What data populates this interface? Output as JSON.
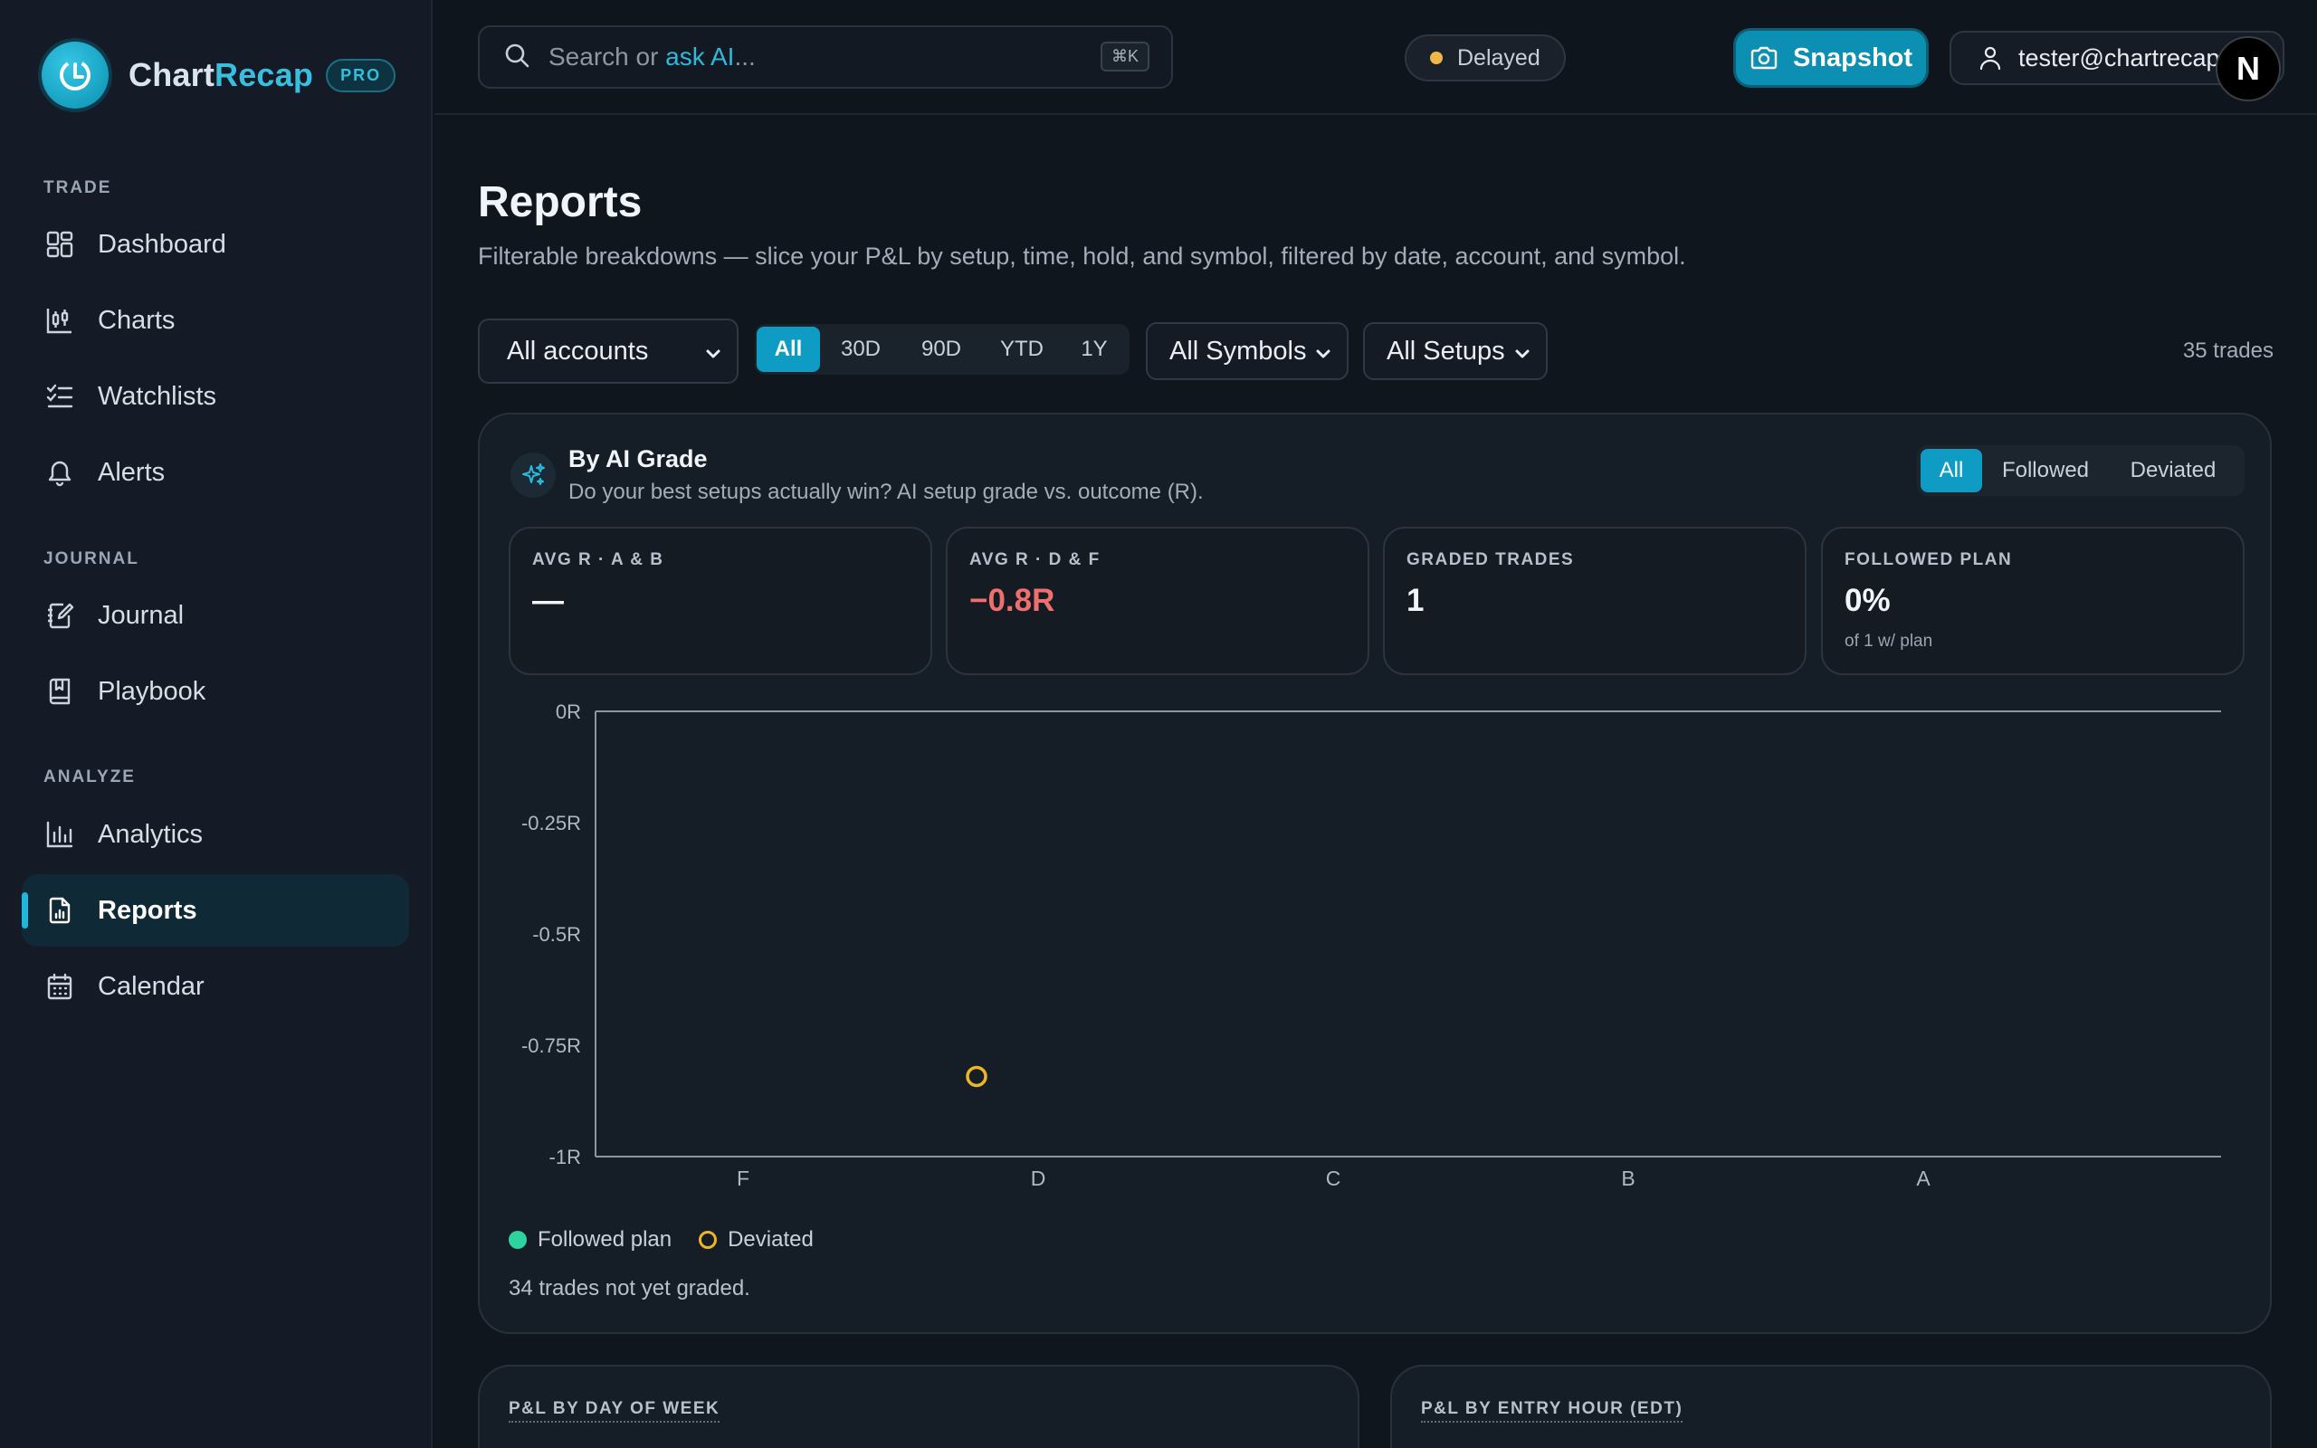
{
  "brand": {
    "name_part1": "Chart",
    "name_part2": "Recap",
    "badge": "PRO"
  },
  "sidebar": {
    "sections": [
      {
        "label": "TRADE",
        "items": [
          {
            "label": "Dashboard",
            "icon": "dashboard-icon"
          },
          {
            "label": "Charts",
            "icon": "candlestick-icon"
          },
          {
            "label": "Watchlists",
            "icon": "list-check-icon"
          },
          {
            "label": "Alerts",
            "icon": "bell-icon"
          }
        ]
      },
      {
        "label": "JOURNAL",
        "items": [
          {
            "label": "Journal",
            "icon": "notebook-pen-icon"
          },
          {
            "label": "Playbook",
            "icon": "book-bookmark-icon"
          }
        ]
      },
      {
        "label": "ANALYZE",
        "items": [
          {
            "label": "Analytics",
            "icon": "bar-chart-icon"
          },
          {
            "label": "Reports",
            "icon": "file-chart-icon",
            "active": true
          },
          {
            "label": "Calendar",
            "icon": "calendar-icon"
          }
        ]
      }
    ]
  },
  "topbar": {
    "search_prefix": "Search or ",
    "search_ai": "ask AI",
    "search_suffix": "...",
    "shortcut": "⌘K",
    "delayed_label": "Delayed",
    "snapshot_label": "Snapshot",
    "user_email": "tester@chartrecap.io",
    "avatar_letter": "N"
  },
  "page": {
    "title": "Reports",
    "subtitle": "Filterable breakdowns — slice your P&L by setup, time, hold, and symbol, filtered by date, account, and symbol."
  },
  "filters": {
    "account": "All accounts",
    "ranges": [
      "All",
      "30D",
      "90D",
      "YTD",
      "1Y"
    ],
    "active_range": "All",
    "symbol": "All Symbols",
    "setup": "All Setups",
    "trade_count": "35 trades"
  },
  "grade_card": {
    "title": "By AI Grade",
    "subtitle": "Do your best setups actually win? AI setup grade vs. outcome (R).",
    "segments": [
      "All",
      "Followed",
      "Deviated"
    ],
    "active_segment": "All",
    "stats": [
      {
        "label": "AVG R · A & B",
        "value": "—",
        "tone": "neutral",
        "note": ""
      },
      {
        "label": "AVG R · D & F",
        "value": "−0.8R",
        "tone": "negative",
        "note": ""
      },
      {
        "label": "GRADED TRADES",
        "value": "1",
        "tone": "neutral",
        "note": ""
      },
      {
        "label": "FOLLOWED PLAN",
        "value": "0%",
        "tone": "neutral",
        "note": "of 1 w/ plan"
      }
    ],
    "legend": {
      "followed": "Followed plan",
      "deviated": "Deviated"
    },
    "ungraded_note": "34 trades not yet graded.",
    "colors": {
      "followed": "#2dd4a0",
      "deviated": "#eeb524"
    }
  },
  "chart_data": {
    "type": "scatter",
    "categories": [
      "F",
      "D",
      "C",
      "B",
      "A"
    ],
    "y_ticks": [
      "0R",
      "-0.25R",
      "-0.5R",
      "-0.75R",
      "-1R"
    ],
    "ylim": [
      -1,
      0
    ],
    "series": [
      {
        "name": "Followed plan",
        "points": []
      },
      {
        "name": "Deviated",
        "points": [
          {
            "x": "D",
            "y": -0.82
          }
        ]
      }
    ],
    "legend": "bottom-left",
    "grid": false
  },
  "lower_cards": [
    {
      "title": "P&L BY DAY OF WEEK"
    },
    {
      "title": "P&L BY ENTRY HOUR (EDT)"
    }
  ]
}
